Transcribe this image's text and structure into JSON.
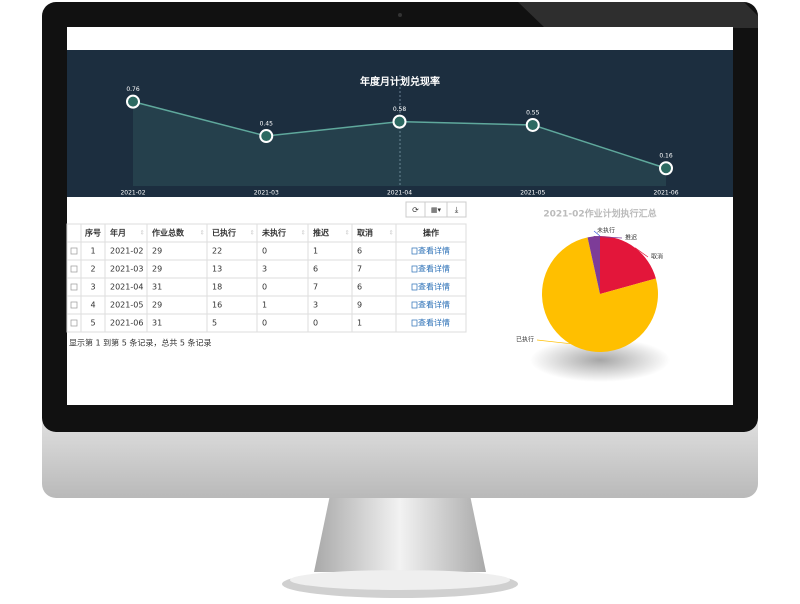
{
  "chart_data": [
    {
      "type": "line",
      "title": "年度月计划兑现率",
      "categories": [
        "2021-02",
        "2021-03",
        "2021-04",
        "2021-05",
        "2021-06"
      ],
      "values": [
        0.76,
        0.45,
        0.58,
        0.55,
        0.16
      ],
      "ylim": [
        0,
        1
      ],
      "color": "#5fa89c"
    },
    {
      "type": "pie",
      "title": "2021-02作业计划执行汇总",
      "categories": [
        "取消",
        "已执行",
        "推迟",
        "未执行"
      ],
      "values": [
        6,
        22,
        1,
        0
      ],
      "colors": [
        "#e3163a",
        "#ffbf00",
        "#7d3c98",
        "#3b5bdb"
      ]
    }
  ],
  "table": {
    "headers": [
      "序号",
      "年月",
      "作业总数",
      "已执行",
      "未执行",
      "推迟",
      "取消",
      "操作"
    ],
    "rows": [
      [
        1,
        "2021-02",
        29,
        22,
        0,
        1,
        6,
        "查看详情"
      ],
      [
        2,
        "2021-03",
        29,
        13,
        3,
        6,
        7,
        "查看详情"
      ],
      [
        3,
        "2021-04",
        31,
        18,
        0,
        7,
        6,
        "查看详情"
      ],
      [
        4,
        "2021-05",
        29,
        16,
        1,
        3,
        9,
        "查看详情"
      ],
      [
        5,
        "2021-06",
        31,
        5,
        0,
        0,
        1,
        "查看详情"
      ]
    ],
    "footer": "显示第 1 到第 5 条记录，总共 5 条记录"
  }
}
